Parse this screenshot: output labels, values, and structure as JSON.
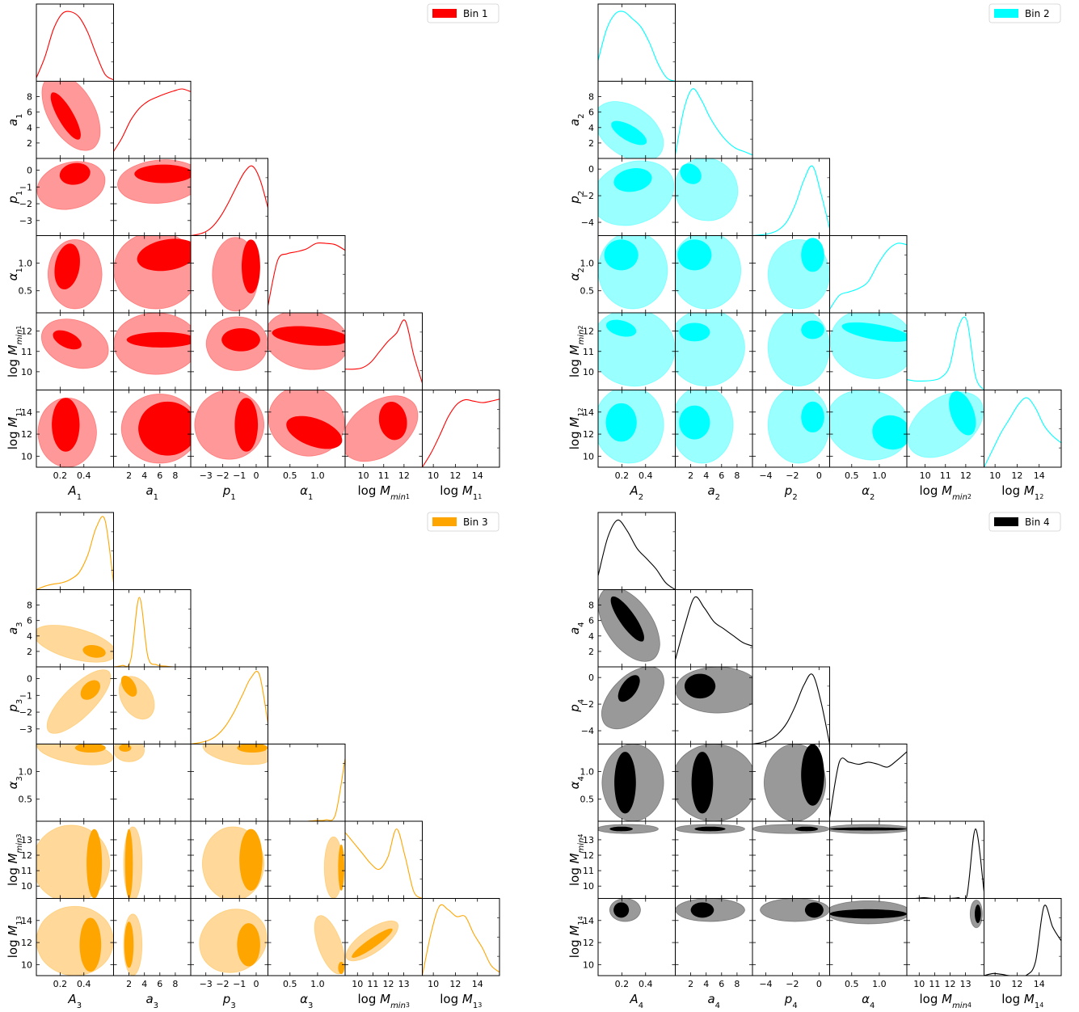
{
  "chart_data": [
    {
      "type": "corner",
      "legend": "Bin 1",
      "color": "#ff0000",
      "fill_inner": "#ff0000",
      "fill_outer": "#ff9999",
      "line": "#ff0000",
      "legend_position": "top-right",
      "parameters": [
        {
          "base": "A",
          "sub": "1",
          "ticks": [
            0.2,
            0.4
          ],
          "tick_labels": [
            "0.2",
            "0.4"
          ],
          "range": [
            0.0,
            0.65
          ]
        },
        {
          "base": "a",
          "sub": "1",
          "ticks": [
            2,
            4,
            6,
            8
          ],
          "tick_labels": [
            "2",
            "4",
            "6",
            "8"
          ],
          "range": [
            0,
            10
          ]
        },
        {
          "base": "p",
          "sub": "1",
          "ticks": [
            -3,
            -2,
            -1,
            0
          ],
          "tick_labels": [
            "−3",
            "−2",
            "−1",
            "0"
          ],
          "range": [
            -3.9,
            0.7
          ]
        },
        {
          "base": "α",
          "sub": "1",
          "ticks": [
            0.5,
            1.0
          ],
          "tick_labels": [
            "0.5",
            "1.0"
          ],
          "range": [
            0.1,
            1.5
          ]
        },
        {
          "base": "log M",
          "sub": "min",
          "sub2": "1",
          "ticks": [
            10,
            11,
            12
          ],
          "tick_labels": [
            "10",
            "11",
            "12"
          ],
          "range": [
            9.1,
            12.9
          ]
        },
        {
          "base": "log M",
          "sub": "1",
          "sub2": "1",
          "ticks": [
            10,
            12,
            14
          ],
          "tick_labels": [
            "10",
            "12",
            "14"
          ],
          "range": [
            9.0,
            16.0
          ]
        }
      ],
      "marginals": [
        [
          0.05,
          0.35,
          0.75,
          0.97,
          1.0,
          0.92,
          0.7,
          0.38,
          0.1,
          0.02
        ],
        [
          0.1,
          0.3,
          0.55,
          0.72,
          0.82,
          0.88,
          0.93,
          0.97,
          1.0,
          0.96
        ],
        [
          0.0,
          0.02,
          0.06,
          0.15,
          0.3,
          0.5,
          0.72,
          0.92,
          1.0,
          0.8,
          0.4
        ],
        [
          0.1,
          0.75,
          0.85,
          0.88,
          0.92,
          1.0,
          1.0,
          0.98,
          0.9
        ],
        [
          0.3,
          0.3,
          0.32,
          0.4,
          0.55,
          0.7,
          0.82,
          1.0,
          0.5,
          0.1
        ],
        [
          0.0,
          0.2,
          0.45,
          0.72,
          0.9,
          0.97,
          0.95,
          0.93,
          0.95,
          0.98
        ]
      ]
    },
    {
      "type": "corner",
      "legend": "Bin 2",
      "color": "#00ffff",
      "fill_inner": "#00ffff",
      "fill_outer": "#99ffff",
      "line": "#00ffff",
      "legend_position": "top-right",
      "parameters": [
        {
          "base": "A",
          "sub": "2",
          "ticks": [
            0.2,
            0.4
          ],
          "tick_labels": [
            "0.2",
            "0.4"
          ],
          "range": [
            0.0,
            0.65
          ]
        },
        {
          "base": "a",
          "sub": "2",
          "ticks": [
            2,
            4,
            6,
            8
          ],
          "tick_labels": [
            "2",
            "4",
            "6",
            "8"
          ],
          "range": [
            0,
            10
          ]
        },
        {
          "base": "p",
          "sub": "2",
          "ticks": [
            -4,
            -2,
            0
          ],
          "tick_labels": [
            "−4",
            "−2",
            "0"
          ],
          "range": [
            -5.0,
            0.8
          ]
        },
        {
          "base": "α",
          "sub": "2",
          "ticks": [
            0.5,
            1.0
          ],
          "tick_labels": [
            "0.5",
            "1.0"
          ],
          "range": [
            0.1,
            1.5
          ]
        },
        {
          "base": "log M",
          "sub": "min",
          "sub2": "2",
          "ticks": [
            10,
            11,
            12
          ],
          "tick_labels": [
            "10",
            "11",
            "12"
          ],
          "range": [
            9.1,
            12.9
          ]
        },
        {
          "base": "log M",
          "sub": "1",
          "sub2": "2",
          "ticks": [
            10,
            12,
            14
          ],
          "tick_labels": [
            "10",
            "12",
            "14"
          ],
          "range": [
            9.0,
            16.0
          ]
        }
      ],
      "marginals": [
        [
          0.3,
          0.75,
          0.97,
          1.0,
          0.9,
          0.78,
          0.55,
          0.25,
          0.05,
          0.0
        ],
        [
          0.05,
          0.7,
          1.0,
          0.85,
          0.6,
          0.4,
          0.25,
          0.15,
          0.1,
          0.05
        ],
        [
          0.0,
          0.01,
          0.03,
          0.08,
          0.2,
          0.45,
          0.8,
          1.0,
          0.6,
          0.1
        ],
        [
          0.05,
          0.25,
          0.3,
          0.35,
          0.45,
          0.7,
          0.9,
          1.0,
          0.98
        ],
        [
          0.15,
          0.13,
          0.13,
          0.14,
          0.18,
          0.35,
          0.9,
          1.0,
          0.2,
          0.0
        ],
        [
          0.0,
          0.25,
          0.5,
          0.7,
          0.9,
          1.0,
          0.85,
          0.6,
          0.45,
          0.35
        ]
      ]
    },
    {
      "type": "corner",
      "legend": "Bin 3",
      "color": "#ffa500",
      "fill_inner": "#ffa500",
      "fill_outer": "#ffd89a",
      "line": "#ffa500",
      "legend_position": "top-right",
      "parameters": [
        {
          "base": "A",
          "sub": "3",
          "ticks": [
            0.2,
            0.4
          ],
          "tick_labels": [
            "0.2",
            "0.4"
          ],
          "range": [
            0.0,
            0.65
          ]
        },
        {
          "base": "a",
          "sub": "3",
          "ticks": [
            2,
            4,
            6,
            8
          ],
          "tick_labels": [
            "2",
            "4",
            "6",
            "8"
          ],
          "range": [
            0,
            10
          ]
        },
        {
          "base": "p",
          "sub": "3",
          "ticks": [
            -3,
            -2,
            -1,
            0
          ],
          "tick_labels": [
            "−3",
            "−2",
            "−1",
            "0"
          ],
          "range": [
            -3.9,
            0.7
          ]
        },
        {
          "base": "α",
          "sub": "3",
          "ticks": [
            0.5,
            1.0
          ],
          "tick_labels": [
            "0.5",
            "1.0"
          ],
          "range": [
            0.1,
            1.5
          ]
        },
        {
          "base": "log M",
          "sub": "min",
          "sub2": "3",
          "ticks": [
            10,
            11,
            12,
            13
          ],
          "tick_labels": [
            "10",
            "11",
            "12",
            "13"
          ],
          "range": [
            9.2,
            14.2
          ]
        },
        {
          "base": "log M",
          "sub": "1",
          "sub2": "3",
          "ticks": [
            10,
            12,
            14
          ],
          "tick_labels": [
            "10",
            "12",
            "14"
          ],
          "range": [
            9.0,
            16.0
          ]
        }
      ],
      "marginals": [
        [
          0.0,
          0.05,
          0.08,
          0.1,
          0.15,
          0.25,
          0.5,
          0.9,
          1.0,
          0.1
        ],
        [
          0.0,
          0.02,
          0.1,
          1.0,
          0.15,
          0.03,
          0.01,
          0.0,
          0.0,
          0.0
        ],
        [
          0.0,
          0.02,
          0.05,
          0.12,
          0.25,
          0.45,
          0.7,
          0.95,
          1.0,
          0.3
        ],
        [
          0.0,
          0.0,
          0.0,
          0.0,
          0.0,
          0.01,
          0.02,
          0.1,
          0.9
        ],
        [
          0.95,
          0.8,
          0.65,
          0.5,
          0.42,
          0.6,
          1.0,
          0.6,
          0.1,
          0.0
        ],
        [
          0.0,
          0.6,
          1.0,
          0.95,
          0.85,
          0.85,
          0.6,
          0.4,
          0.15,
          0.05
        ]
      ]
    },
    {
      "type": "corner",
      "legend": "Bin 4",
      "color": "#000000",
      "fill_inner": "#000000",
      "fill_outer": "#999999",
      "line": "#000000",
      "legend_position": "top-right",
      "parameters": [
        {
          "base": "A",
          "sub": "4",
          "ticks": [
            0.2,
            0.4
          ],
          "tick_labels": [
            "0.2",
            "0.4"
          ],
          "range": [
            0.0,
            0.65
          ]
        },
        {
          "base": "a",
          "sub": "4",
          "ticks": [
            2,
            4,
            6,
            8
          ],
          "tick_labels": [
            "2",
            "4",
            "6",
            "8"
          ],
          "range": [
            0,
            10
          ]
        },
        {
          "base": "p",
          "sub": "4",
          "ticks": [
            -4,
            -2,
            0
          ],
          "tick_labels": [
            "−4",
            "−2",
            "0"
          ],
          "range": [
            -5.0,
            0.8
          ]
        },
        {
          "base": "α",
          "sub": "4",
          "ticks": [
            0.5,
            1.0
          ],
          "tick_labels": [
            "0.5",
            "1.0"
          ],
          "range": [
            0.1,
            1.5
          ]
        },
        {
          "base": "log M",
          "sub": "min",
          "sub2": "4",
          "ticks": [
            10,
            11,
            12,
            13
          ],
          "tick_labels": [
            "10",
            "11",
            "12",
            "13"
          ],
          "range": [
            9.2,
            14.2
          ]
        },
        {
          "base": "log M",
          "sub": "1",
          "sub2": "4",
          "ticks": [
            10,
            12,
            14
          ],
          "tick_labels": [
            "10",
            "12",
            "14"
          ],
          "range": [
            9.0,
            16.0
          ]
        }
      ],
      "marginals": [
        [
          0.2,
          0.75,
          1.0,
          0.85,
          0.6,
          0.45,
          0.3,
          0.1,
          0.0
        ],
        [
          0.1,
          0.6,
          1.0,
          0.85,
          0.65,
          0.55,
          0.45,
          0.35,
          0.3
        ],
        [
          0.0,
          0.02,
          0.06,
          0.15,
          0.3,
          0.55,
          0.85,
          1.0,
          0.6,
          0.0
        ],
        [
          0.05,
          0.85,
          0.85,
          0.82,
          0.85,
          0.82,
          0.78,
          0.88,
          1.0
        ],
        [
          0.0,
          0.0,
          0.01,
          0.0,
          0.0,
          0.0,
          0.01,
          0.04,
          1.0,
          0.1
        ],
        [
          0.0,
          0.03,
          0.02,
          0.0,
          0.0,
          0.01,
          0.2,
          1.0,
          0.7,
          0.5
        ]
      ]
    }
  ]
}
